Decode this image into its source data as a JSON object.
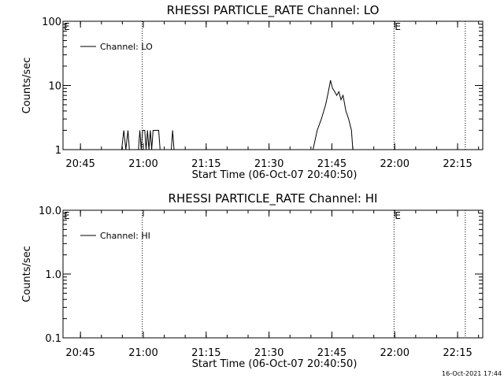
{
  "footer": {
    "timestamp": "16-Oct-2021 17:44"
  },
  "chart_data": [
    {
      "type": "line",
      "title": "RHESSI PARTICLE_RATE Channel: LO",
      "xlabel": "Start Time (06-Oct-07 20:40:50)",
      "ylabel": "Counts/sec",
      "yscale": "log",
      "xlim": [
        "20:40:50",
        "22:21:00"
      ],
      "ylim": [
        1,
        100
      ],
      "xticks": [
        "20:45",
        "21:00",
        "21:15",
        "21:30",
        "21:45",
        "22:00",
        "22:15"
      ],
      "yticks": [
        "1",
        "10",
        "100"
      ],
      "legend": {
        "entries": [
          "Channel: LO"
        ],
        "position": "top-left"
      },
      "markers": [
        {
          "time": "20:59:45",
          "label": ""
        },
        {
          "time": "21:59:50",
          "label": "E"
        },
        {
          "time": "22:16:50",
          "label": ""
        }
      ],
      "left_marker_label": "E",
      "series": [
        {
          "name": "Channel: LO",
          "points": [
            [
              "20:54:50",
              1
            ],
            [
              "20:55:20",
              2
            ],
            [
              "20:55:50",
              1
            ],
            [
              "20:56:20",
              2
            ],
            [
              "20:56:40",
              1
            ],
            [
              "20:58:50",
              1
            ],
            [
              "20:59:10",
              2
            ],
            [
              "20:59:30",
              1
            ],
            [
              "20:59:50",
              2
            ],
            [
              "21:00:20",
              2
            ],
            [
              "21:00:40",
              1
            ],
            [
              "21:01:00",
              2
            ],
            [
              "21:01:20",
              1
            ],
            [
              "21:01:40",
              2
            ],
            [
              "21:02:00",
              1
            ],
            [
              "21:02:20",
              2
            ],
            [
              "21:03:40",
              2
            ],
            [
              "21:04:00",
              1
            ],
            [
              "21:06:40",
              1
            ],
            [
              "21:07:00",
              2
            ],
            [
              "21:07:20",
              1
            ],
            [
              "21:40:30",
              1
            ],
            [
              "21:41:30",
              2
            ],
            [
              "21:42:30",
              3
            ],
            [
              "21:43:30",
              5
            ],
            [
              "21:44:10",
              8
            ],
            [
              "21:44:40",
              12
            ],
            [
              "21:45:10",
              9
            ],
            [
              "21:45:40",
              8
            ],
            [
              "21:46:10",
              7
            ],
            [
              "21:46:40",
              8
            ],
            [
              "21:47:10",
              6
            ],
            [
              "21:47:40",
              7
            ],
            [
              "21:48:20",
              4
            ],
            [
              "21:49:00",
              3
            ],
            [
              "21:49:40",
              2
            ],
            [
              "21:50:00",
              1
            ]
          ]
        }
      ]
    },
    {
      "type": "line",
      "title": "RHESSI PARTICLE_RATE Channel: HI",
      "xlabel": "Start Time (06-Oct-07 20:40:50)",
      "ylabel": "Counts/sec",
      "yscale": "log",
      "xlim": [
        "20:40:50",
        "22:21:00"
      ],
      "ylim": [
        0.1,
        10
      ],
      "xticks": [
        "20:45",
        "21:00",
        "21:15",
        "21:30",
        "21:45",
        "22:00",
        "22:15"
      ],
      "yticks": [
        "0.1",
        "1.0",
        "10.0"
      ],
      "legend": {
        "entries": [
          "Channel: HI"
        ],
        "position": "top-left"
      },
      "markers": [
        {
          "time": "20:59:45",
          "label": ""
        },
        {
          "time": "21:59:50",
          "label": "E"
        },
        {
          "time": "22:16:50",
          "label": ""
        }
      ],
      "left_marker_label": "E",
      "series": [
        {
          "name": "Channel: HI",
          "points": []
        }
      ]
    }
  ]
}
